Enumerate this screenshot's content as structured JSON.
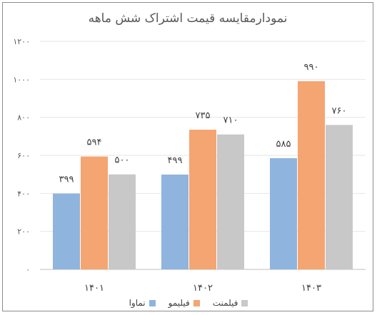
{
  "chart_data": {
    "type": "bar",
    "title": "نمودارمقایسه قیمت اشتراک شش ماهه",
    "categories": [
      "۱۴۰۱",
      "۱۴۰۲",
      "۱۴۰۳"
    ],
    "series": [
      {
        "name": "نماوا",
        "color": "#8fb4de",
        "values": [
          399,
          499,
          585
        ],
        "labels": [
          "۳۹۹",
          "۴۹۹",
          "۵۸۵"
        ]
      },
      {
        "name": "فیلیمو",
        "color": "#f4a571",
        "values": [
          594,
          735,
          990
        ],
        "labels": [
          "۵۹۴",
          "۷۳۵",
          "۹۹۰"
        ]
      },
      {
        "name": "فیلمنت",
        "color": "#c8c8c8",
        "values": [
          500,
          710,
          760
        ],
        "labels": [
          "۵۰۰",
          "۷۱۰",
          "۷۶۰"
        ]
      }
    ],
    "ylim": [
      0,
      1200
    ],
    "yticks": [
      0,
      200,
      400,
      600,
      800,
      1000,
      1200
    ],
    "ytick_labels": [
      "۰",
      "۲۰۰",
      "۴۰۰",
      "۶۰۰",
      "۸۰۰",
      "۱۰۰۰",
      "۱۲۰۰"
    ],
    "grid": true,
    "legend_position": "bottom"
  }
}
